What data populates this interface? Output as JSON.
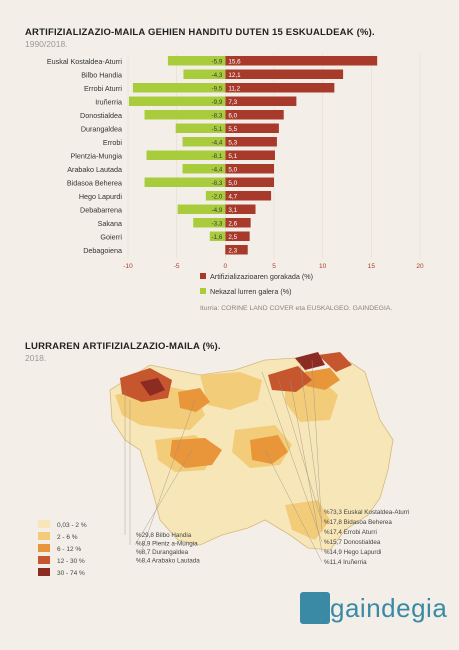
{
  "chart_title": "ARTIFIZIALIZAZIO-MAILA GEHIEN HANDITU DUTEN 15 ESKUALDEAK (%).",
  "chart_subtitle": "1990/2018.",
  "map_title": "LURRAREN ARTIFIZIALZAZIO-MAILA (%).",
  "map_subtitle": "2018.",
  "source": "Iturria: CORINE LAND COVER eta EUSKALGEO. GAINDEGIA.",
  "logo_text": "gaindegia",
  "colors": {
    "artificial": "#a83a2c",
    "agricultural": "#a9cc3c",
    "background": "#f3efe8",
    "logo": "#3a8aa6"
  },
  "chart_data": {
    "type": "bar",
    "orientation": "horizontal",
    "categories": [
      "Euskal Kostaldea-Aturri",
      "Bilbo Handia",
      "Errobi Aturri",
      "Iruñerria",
      "Donostialdea",
      "Durangaldea",
      "Errobi",
      "Plentzia-Mungia",
      "Arabako Lautada",
      "Bidasoa Beherea",
      "Hego Lapurdi",
      "Debabarrena",
      "Sakana",
      "Goierri",
      "Debagoiena"
    ],
    "series": [
      {
        "name": "Artifizializazioaren gorakada (%)",
        "values": [
          15.6,
          12.1,
          11.2,
          7.3,
          6.0,
          5.5,
          5.3,
          5.1,
          5.0,
          5.0,
          4.7,
          3.1,
          2.6,
          2.5,
          2.3
        ],
        "labels": [
          "15,6",
          "12,1",
          "11,2",
          "7,3",
          "6,0",
          "5,5",
          "5,3",
          "5,1",
          "5,0",
          "5,0",
          "4,7",
          "3,1",
          "2,6",
          "2,5",
          "2,3"
        ]
      },
      {
        "name": "Nekazal lurren galera (%)",
        "values": [
          -5.9,
          -4.3,
          -9.5,
          -9.9,
          -8.3,
          -5.1,
          -4.4,
          -8.1,
          -4.4,
          -8.3,
          -2.0,
          -4.9,
          -3.3,
          -1.6,
          0
        ],
        "labels": [
          "-5,9",
          "-4,3",
          "-9,5",
          "-9,9",
          "-8,3",
          "-5,1",
          "-4,4",
          "-8,1",
          "-4,4",
          "-8,3",
          "-2,0",
          "-4,9",
          "-3,3",
          "-1,6",
          ""
        ]
      }
    ],
    "xlim": [
      -10,
      20
    ],
    "xticks": [
      -10,
      -5,
      0,
      5,
      10,
      15,
      20
    ],
    "xtick_labels": [
      "-10",
      "-5",
      "0",
      "5",
      "10",
      "15",
      "20"
    ]
  },
  "map_legend": [
    {
      "label": "0,03 - 2 %",
      "color": "#f7e6b8"
    },
    {
      "label": "2 - 6 %",
      "color": "#f3cc7a"
    },
    {
      "label": "6 - 12 %",
      "color": "#e9953a"
    },
    {
      "label": "12 - 30 %",
      "color": "#c5562e"
    },
    {
      "label": "30 - 74 %",
      "color": "#8c2b22"
    }
  ],
  "map_annotations_left": [
    "%29,8 Bilbo Handia",
    "%8,9 Plentz a-Mungia",
    "%8,7 Durangaldea",
    "%8,4 Arabako Lautada"
  ],
  "map_annotations_right": [
    "%73,3 Euskal Kostaldea-Aturri",
    "%17,8 Bidasoa Beherea",
    "%17,4 Errobi Aturri",
    "%15,7 Donostialdea",
    "%14,9 Hego Lapurdi",
    "%11,4 Iruñerria"
  ]
}
